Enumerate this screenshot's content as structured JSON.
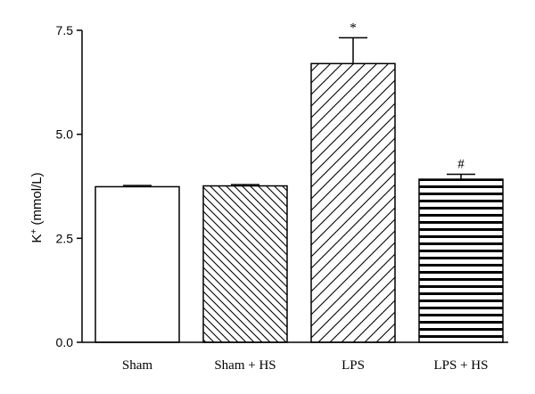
{
  "chart_data": {
    "type": "bar",
    "categories": [
      "Sham",
      "Sham + HS",
      "LPS",
      "LPS + HS"
    ],
    "values": [
      3.74,
      3.76,
      6.7,
      3.92
    ],
    "errors": [
      0.03,
      0.03,
      0.62,
      0.12
    ],
    "annotations": [
      "",
      "",
      "*",
      "#"
    ],
    "patterns": [
      "none",
      "diag-down-dense",
      "diag-up-sparse",
      "horizontal"
    ],
    "title": "",
    "xlabel": "",
    "ylabel": "K+ (mmol/L)",
    "ylabel_parts": {
      "base": "K",
      "sup": "+",
      "unit": " (mmol/L)"
    },
    "ylim": [
      0,
      7.5
    ],
    "yticks": [
      0.0,
      2.5,
      5.0,
      7.5
    ],
    "ytick_labels": [
      "0.0",
      "2.5",
      "5.0",
      "7.5"
    ],
    "grid": false,
    "legend": "none"
  }
}
